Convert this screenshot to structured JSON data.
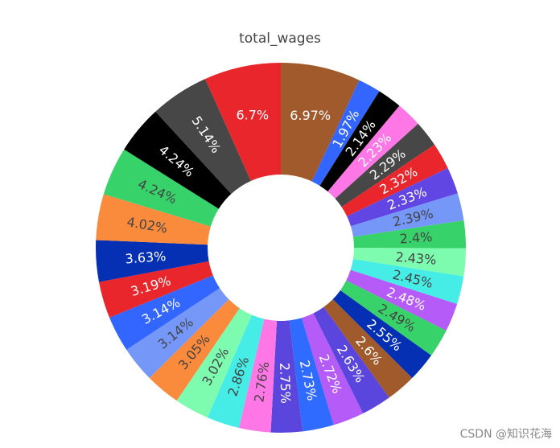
{
  "watermark": "CSDN @知识花海",
  "chart_data": {
    "type": "pie",
    "hole": true,
    "title": "total_wages",
    "slices": [
      {
        "label": "6.97%",
        "value": 6.97,
        "color": "#A05A2C",
        "text_color": "#ffffff"
      },
      {
        "label": "1.97%",
        "value": 1.97,
        "color": "#3366FF",
        "text_color": "#ffffff"
      },
      {
        "label": "2.14%",
        "value": 2.14,
        "color": "#000000",
        "text_color": "#ffffff"
      },
      {
        "label": "2.23%",
        "value": 2.23,
        "color": "#FF77E6",
        "text_color": "#ffffff"
      },
      {
        "label": "2.29%",
        "value": 2.29,
        "color": "#474747",
        "text_color": "#ffffff"
      },
      {
        "label": "2.32%",
        "value": 2.32,
        "color": "#E8262B",
        "text_color": "#ffffff"
      },
      {
        "label": "2.33%",
        "value": 2.33,
        "color": "#6146E3",
        "text_color": "#ffffff"
      },
      {
        "label": "2.39%",
        "value": 2.39,
        "color": "#7598F8",
        "text_color": "#444444"
      },
      {
        "label": "2.4%",
        "value": 2.4,
        "color": "#38D26A",
        "text_color": "#444444"
      },
      {
        "label": "2.43%",
        "value": 2.43,
        "color": "#7DFCB0",
        "text_color": "#444444"
      },
      {
        "label": "2.45%",
        "value": 2.45,
        "color": "#46EDE6",
        "text_color": "#444444"
      },
      {
        "label": "2.48%",
        "value": 2.48,
        "color": "#B45BF8",
        "text_color": "#ffffff"
      },
      {
        "label": "2.49%",
        "value": 2.49,
        "color": "#38D26A",
        "text_color": "#444444"
      },
      {
        "label": "2.55%",
        "value": 2.55,
        "color": "#0630B3",
        "text_color": "#ffffff"
      },
      {
        "label": "2.6%",
        "value": 2.6,
        "color": "#A05A2C",
        "text_color": "#ffffff"
      },
      {
        "label": "2.63%",
        "value": 2.63,
        "color": "#5A45DD",
        "text_color": "#ffffff"
      },
      {
        "label": "2.72%",
        "value": 2.72,
        "color": "#B45BF8",
        "text_color": "#ffffff"
      },
      {
        "label": "2.73%",
        "value": 2.73,
        "color": "#2F6BFF",
        "text_color": "#ffffff"
      },
      {
        "label": "2.75%",
        "value": 2.75,
        "color": "#5A45DD",
        "text_color": "#ffffff"
      },
      {
        "label": "2.76%",
        "value": 2.76,
        "color": "#FF77E6",
        "text_color": "#444444"
      },
      {
        "label": "2.86%",
        "value": 2.86,
        "color": "#46EDE6",
        "text_color": "#444444"
      },
      {
        "label": "3.02%",
        "value": 3.02,
        "color": "#7DFCB0",
        "text_color": "#444444"
      },
      {
        "label": "3.05%",
        "value": 3.05,
        "color": "#FA8A3C",
        "text_color": "#444444"
      },
      {
        "label": "3.14%",
        "value": 3.14,
        "color": "#7598F8",
        "text_color": "#444444"
      },
      {
        "label": "3.14%",
        "value": 3.14,
        "color": "#3366FF",
        "text_color": "#ffffff"
      },
      {
        "label": "3.19%",
        "value": 3.19,
        "color": "#E8262B",
        "text_color": "#ffffff"
      },
      {
        "label": "3.63%",
        "value": 3.63,
        "color": "#0630B3",
        "text_color": "#ffffff"
      },
      {
        "label": "4.02%",
        "value": 4.02,
        "color": "#FA8A3C",
        "text_color": "#444444"
      },
      {
        "label": "4.24%",
        "value": 4.24,
        "color": "#38D26A",
        "text_color": "#444444"
      },
      {
        "label": "4.24%",
        "value": 4.24,
        "color": "#000000",
        "text_color": "#ffffff"
      },
      {
        "label": "5.14%",
        "value": 5.14,
        "color": "#474747",
        "text_color": "#ffffff"
      },
      {
        "label": "6.7%",
        "value": 6.7,
        "color": "#E8262B",
        "text_color": "#ffffff"
      }
    ]
  }
}
